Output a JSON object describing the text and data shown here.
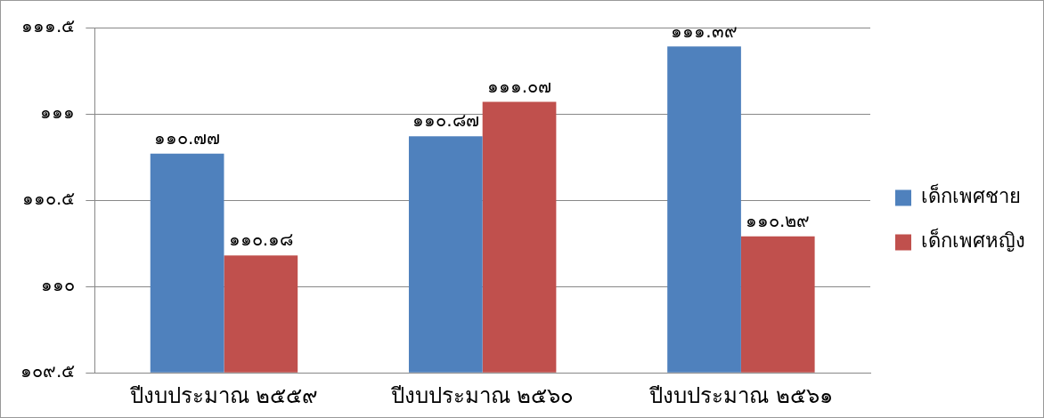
{
  "chart_data": {
    "type": "bar",
    "categories": [
      "ปีงบประมาณ ๒๕๕๙",
      "ปีงบประมาณ ๒๕๖๐",
      "ปีงบประมาณ ๒๕๖๑"
    ],
    "series": [
      {
        "name": "เด็กเพศชาย",
        "color": "#4f81bd",
        "values": [
          110.77,
          110.87,
          111.39
        ],
        "value_labels": [
          "๑๑๐.๗๗",
          "๑๑๐.๘๗",
          "๑๑๑.๓๙"
        ]
      },
      {
        "name": "เด็กเพศหญิง",
        "color": "#c0504d",
        "values": [
          110.18,
          111.07,
          110.29
        ],
        "value_labels": [
          "๑๑๐.๑๘",
          "๑๑๑.๐๗",
          "๑๑๐.๒๙"
        ]
      }
    ],
    "ylim": [
      109.5,
      111.5
    ],
    "yticks": [
      {
        "value": 109.5,
        "label": "๑๐๙.๕"
      },
      {
        "value": 110,
        "label": "๑๑๐"
      },
      {
        "value": 110.5,
        "label": "๑๑๐.๕"
      },
      {
        "value": 111,
        "label": "๑๑๑"
      },
      {
        "value": 111.5,
        "label": "๑๑๑.๕"
      }
    ],
    "grid": "y",
    "legend": "right"
  }
}
